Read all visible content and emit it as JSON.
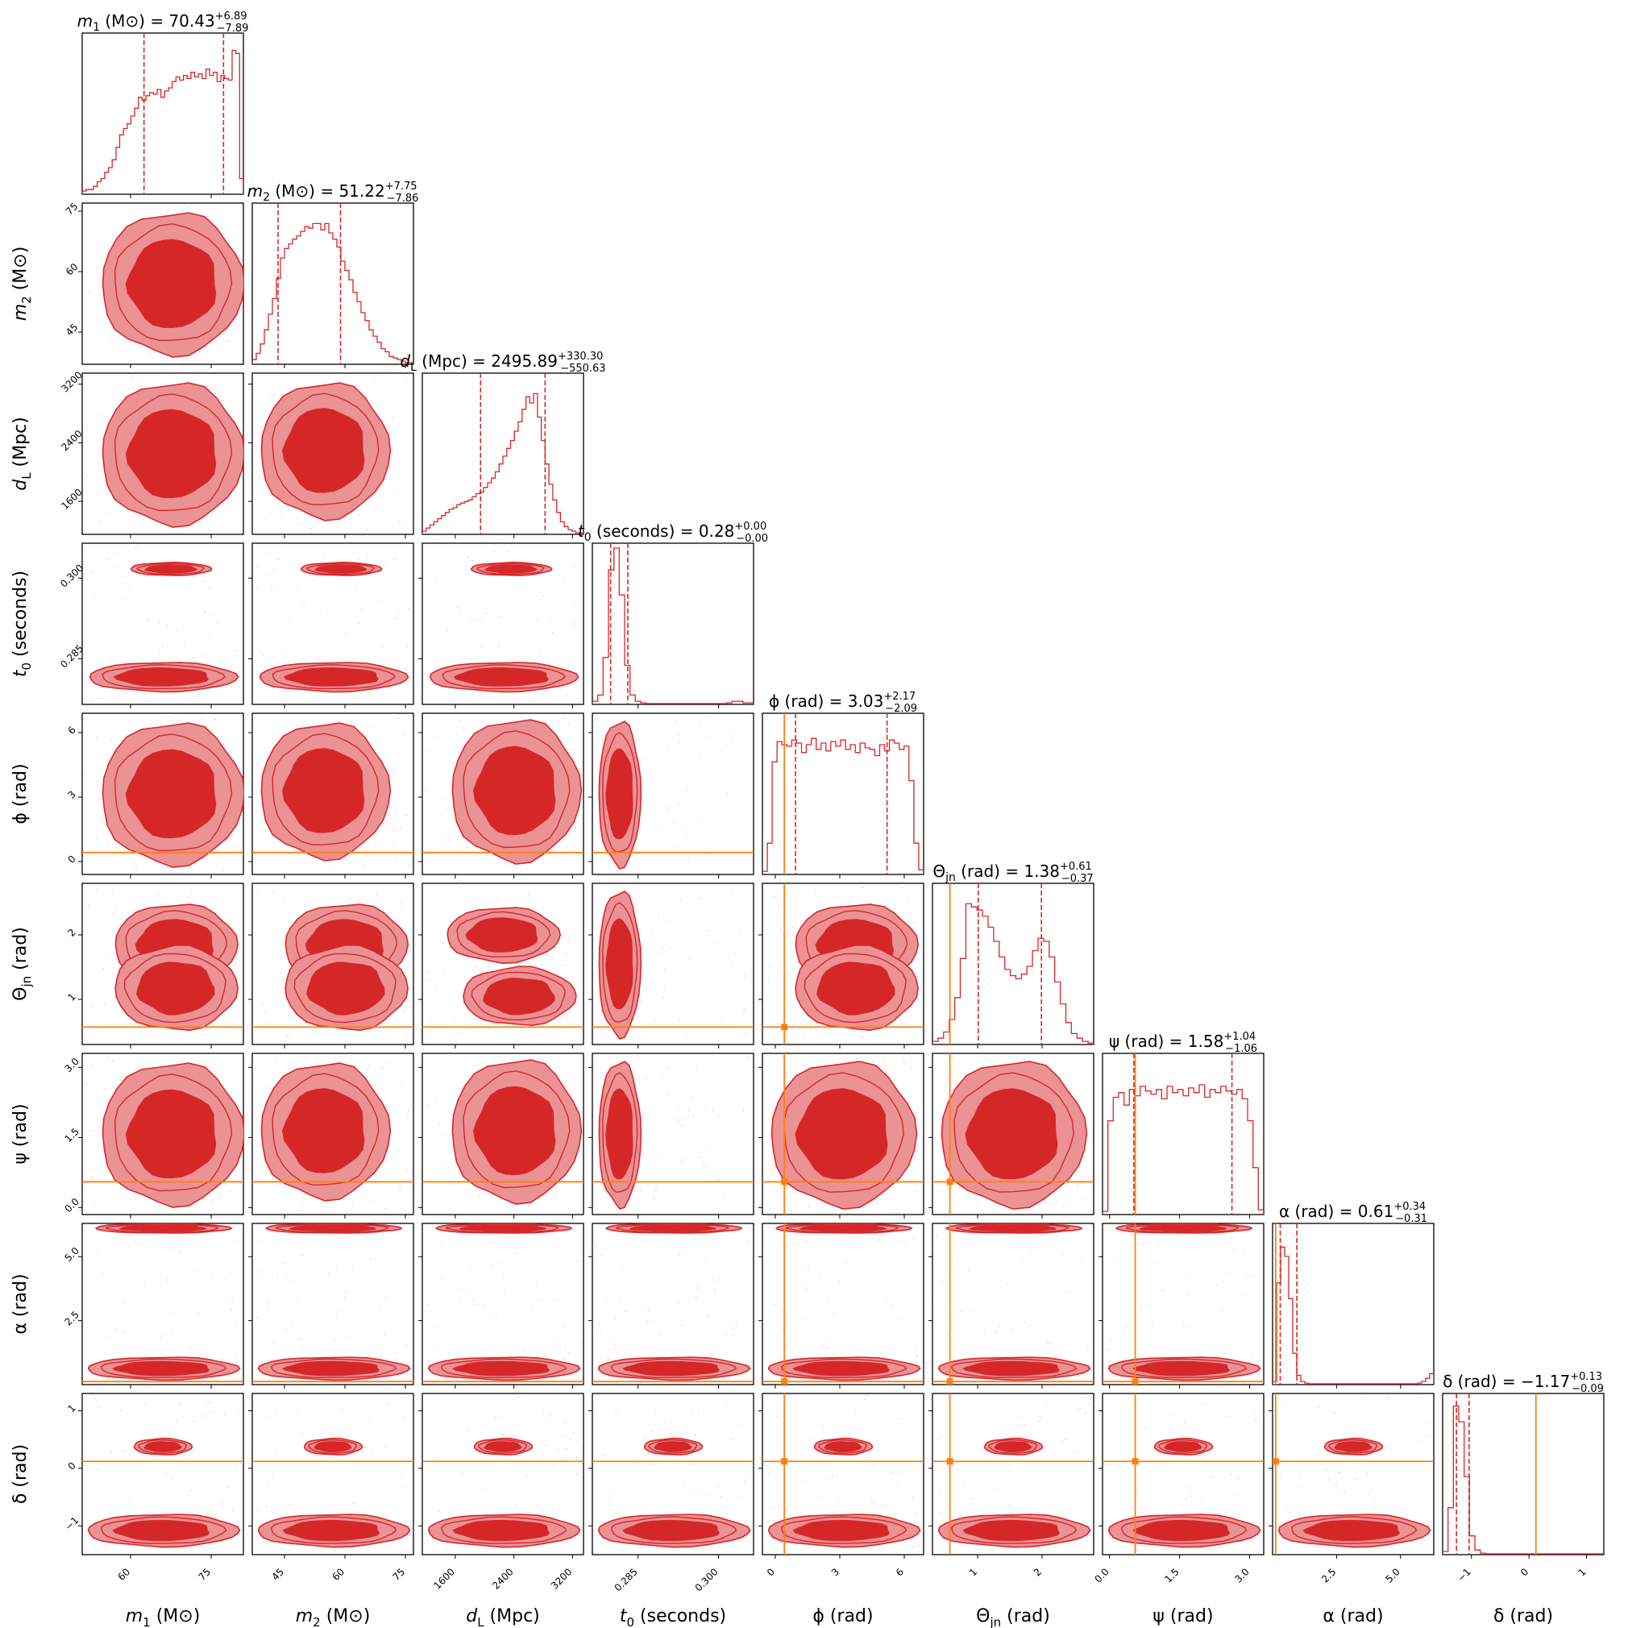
{
  "chart_data": {
    "type": "corner",
    "colors": {
      "posterior": "#d62728",
      "contour_outer": "#eb9295",
      "contour_inner": "#d62728",
      "truth": "#ff7f0e",
      "frame": "#000000"
    },
    "parameters": [
      {
        "key": "m1",
        "symbol": "m",
        "sub": "1",
        "unit": "(M⊙)",
        "median": "70.43",
        "err_plus": "+6.89",
        "err_minus": "−7.89",
        "range": [
          51,
          81
        ],
        "ticks": [
          60,
          75
        ],
        "tick_labels": [
          "60",
          "75"
        ],
        "quantiles": [
          62.5,
          77.3
        ],
        "truth": null,
        "hist": [
          0.02,
          0.03,
          0.03,
          0.05,
          0.08,
          0.1,
          0.14,
          0.17,
          0.22,
          0.3,
          0.38,
          0.42,
          0.45,
          0.5,
          0.55,
          0.62,
          0.6,
          0.63,
          0.65,
          0.64,
          0.67,
          0.62,
          0.66,
          0.68,
          0.72,
          0.75,
          0.73,
          0.76,
          0.74,
          0.78,
          0.75,
          0.77,
          0.74,
          0.8,
          0.76,
          0.78,
          0.72,
          0.76,
          0.74,
          0.73,
          0.92,
          0.9,
          0.1
        ]
      },
      {
        "key": "m2",
        "symbol": "m",
        "sub": "2",
        "unit": "(M⊙)",
        "median": "51.22",
        "err_plus": "+7.75",
        "err_minus": "−7.86",
        "range": [
          37,
          77
        ],
        "ticks": [
          45,
          60,
          75
        ],
        "tick_labels": [
          "45",
          "60",
          "75"
        ],
        "quantiles": [
          43.4,
          58.9
        ],
        "truth": null,
        "hist": [
          0.03,
          0.07,
          0.13,
          0.22,
          0.32,
          0.42,
          0.55,
          0.68,
          0.74,
          0.77,
          0.8,
          0.82,
          0.85,
          0.88,
          0.87,
          0.9,
          0.9,
          0.86,
          0.9,
          0.84,
          0.8,
          0.75,
          0.66,
          0.6,
          0.54,
          0.46,
          0.4,
          0.33,
          0.28,
          0.22,
          0.18,
          0.14,
          0.1,
          0.08,
          0.05,
          0.04,
          0.03,
          0.02,
          0.01,
          0.01
        ]
      },
      {
        "key": "dL",
        "symbol": "d",
        "sub": "L",
        "unit": "(Mpc)",
        "median": "2495.89",
        "err_plus": "+330.30",
        "err_minus": "−550.63",
        "range": [
          1150,
          3350
        ],
        "ticks": [
          1600,
          2400,
          3200
        ],
        "tick_labels": [
          "1600",
          "2400",
          "3200"
        ],
        "quantiles": [
          1945,
          2826
        ],
        "truth": null,
        "hist": [
          0.02,
          0.04,
          0.06,
          0.08,
          0.1,
          0.12,
          0.14,
          0.16,
          0.17,
          0.19,
          0.2,
          0.21,
          0.22,
          0.24,
          0.26,
          0.27,
          0.3,
          0.33,
          0.36,
          0.4,
          0.45,
          0.5,
          0.55,
          0.6,
          0.66,
          0.72,
          0.8,
          0.88,
          0.84,
          0.9,
          0.75,
          0.6,
          0.45,
          0.32,
          0.22,
          0.14,
          0.08,
          0.05,
          0.03,
          0.02,
          0.01,
          0.01
        ]
      },
      {
        "key": "t0",
        "symbol": "t",
        "sub": "0",
        "unit": "(seconds)",
        "median": "0.28",
        "err_plus": "+0.00",
        "err_minus": "−0.00",
        "range": [
          0.2765,
          0.3065
        ],
        "ticks": [
          0.285,
          0.3
        ],
        "tick_labels": [
          "0.285",
          "0.300"
        ],
        "quantiles": [
          0.2799,
          0.2831
        ],
        "truth": null,
        "hist": [
          0.02,
          0.06,
          0.3,
          0.86,
          1.0,
          0.7,
          0.25,
          0.06,
          0.02,
          0.01,
          0.005,
          0.005,
          0.005,
          0.005,
          0.005,
          0.005,
          0.005,
          0.005,
          0.005,
          0.005,
          0.005,
          0.005,
          0.005,
          0.005,
          0.005,
          0.01,
          0.02,
          0.02,
          0.01,
          0.01
        ]
      },
      {
        "key": "phi",
        "symbol": "ϕ",
        "sub": "",
        "unit": "(rad)",
        "median": "3.03",
        "err_plus": "+2.17",
        "err_minus": "−2.09",
        "range": [
          -0.6,
          6.9
        ],
        "ticks": [
          0,
          3,
          6
        ],
        "tick_labels": [
          "0",
          "3",
          "6"
        ],
        "quantiles": [
          0.94,
          5.2
        ],
        "truth": 0.42,
        "hist": [
          0.02,
          0.2,
          0.72,
          0.85,
          0.83,
          0.82,
          0.86,
          0.84,
          0.78,
          0.83,
          0.87,
          0.8,
          0.84,
          0.79,
          0.85,
          0.82,
          0.86,
          0.8,
          0.83,
          0.78,
          0.84,
          0.81,
          0.8,
          0.76,
          0.83,
          0.79,
          0.86,
          0.84,
          0.8,
          0.82,
          0.6,
          0.2,
          0.03
        ]
      },
      {
        "key": "theta",
        "symbol": "Θ",
        "sub": "jn",
        "unit": "(rad)",
        "median": "1.38",
        "err_plus": "+0.61",
        "err_minus": "−0.37",
        "range": [
          0.3,
          2.8
        ],
        "ticks": [
          1,
          2
        ],
        "tick_labels": [
          "1",
          "2"
        ],
        "quantiles": [
          1.01,
          1.99
        ],
        "truth": 0.57,
        "hist": [
          0.02,
          0.04,
          0.08,
          0.16,
          0.3,
          0.55,
          0.9,
          0.88,
          0.86,
          0.82,
          0.75,
          0.66,
          0.56,
          0.48,
          0.44,
          0.42,
          0.45,
          0.5,
          0.6,
          0.68,
          0.66,
          0.56,
          0.4,
          0.26,
          0.14,
          0.07,
          0.04,
          0.02,
          0.01
        ]
      },
      {
        "key": "psi",
        "symbol": "ψ",
        "sub": "",
        "unit": "(rad)",
        "median": "1.58",
        "err_plus": "+1.04",
        "err_minus": "−1.06",
        "range": [
          -0.15,
          3.3
        ],
        "ticks": [
          0.0,
          1.5,
          3.0
        ],
        "tick_labels": [
          "0.0",
          "1.5",
          "3.0"
        ],
        "quantiles": [
          0.52,
          2.62
        ],
        "truth": 0.55,
        "hist": [
          0.02,
          0.6,
          0.75,
          0.78,
          0.7,
          0.8,
          0.76,
          0.82,
          0.79,
          0.77,
          0.8,
          0.74,
          0.82,
          0.78,
          0.8,
          0.76,
          0.81,
          0.78,
          0.83,
          0.75,
          0.8,
          0.78,
          0.82,
          0.79,
          0.77,
          0.8,
          0.74,
          0.6,
          0.3,
          0.03
        ]
      },
      {
        "key": "alpha",
        "symbol": "α",
        "sub": "",
        "unit": "(rad)",
        "median": "0.61",
        "err_plus": "+0.34",
        "err_minus": "−0.31",
        "range": [
          0.0,
          6.3
        ],
        "ticks": [
          2.5,
          5.0
        ],
        "tick_labels": [
          "2.5",
          "5.0"
        ],
        "quantiles": [
          0.3,
          0.95
        ],
        "truth": 0.12,
        "hist": [
          0.02,
          0.65,
          0.88,
          0.82,
          0.55,
          0.2,
          0.06,
          0.02,
          0.01,
          0.005,
          0.005,
          0.005,
          0.005,
          0.005,
          0.005,
          0.005,
          0.005,
          0.005,
          0.005,
          0.005,
          0.005,
          0.005,
          0.005,
          0.005,
          0.005,
          0.005,
          0.005,
          0.005,
          0.005,
          0.005,
          0.005,
          0.005,
          0.005,
          0.005,
          0.005,
          0.005,
          0.01,
          0.02,
          0.04,
          0.07
        ]
      },
      {
        "key": "delta",
        "symbol": "δ",
        "sub": "",
        "unit": "(rad)",
        "median": "−1.17",
        "err_plus": "+0.13",
        "err_minus": "−0.09",
        "range": [
          -1.5,
          1.3
        ],
        "ticks": [
          -1,
          0,
          1
        ],
        "tick_labels": [
          "−1",
          "0",
          "1"
        ],
        "quantiles": [
          -1.26,
          -1.04
        ],
        "truth": 0.12,
        "hist": [
          0.02,
          0.3,
          0.95,
          0.85,
          0.5,
          0.12,
          0.03,
          0.01,
          0.005,
          0.005,
          0.005,
          0.005,
          0.005,
          0.005,
          0.005,
          0.005,
          0.005,
          0.005,
          0.005,
          0.005,
          0.005,
          0.005,
          0.005,
          0.005,
          0.005,
          0.005,
          0.005,
          0.005,
          0.005,
          0.005
        ]
      }
    ]
  }
}
